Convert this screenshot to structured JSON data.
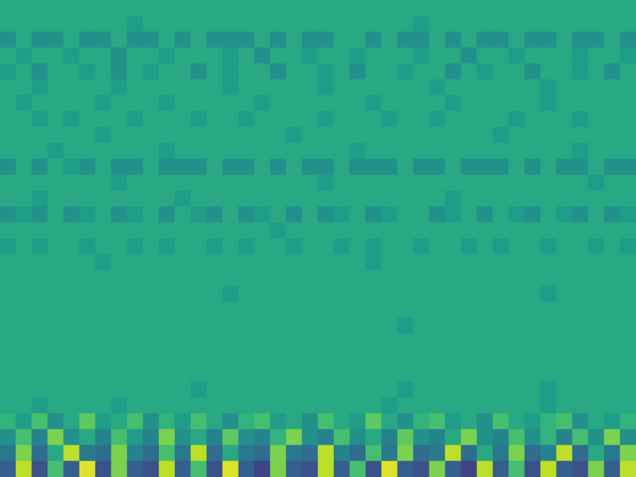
{
  "chart_data": {
    "type": "heatmap",
    "tick_labels": false,
    "color_range": [
      0,
      10
    ],
    "cells": [
      [
        6,
        6,
        6,
        6,
        6,
        6,
        6,
        6,
        6,
        6,
        6,
        6,
        6,
        6,
        6,
        6,
        6,
        6,
        6,
        6,
        6,
        6,
        6,
        6,
        6,
        6,
        6,
        6,
        6,
        6,
        6,
        6,
        6,
        6,
        6,
        6,
        6,
        6,
        6,
        6
      ],
      [
        6,
        6,
        6,
        6,
        6,
        6,
        6,
        6,
        5.5,
        6,
        6,
        6,
        6,
        6,
        6,
        6,
        6,
        6,
        6,
        6,
        6,
        6,
        6,
        6,
        6,
        6,
        5.5,
        6,
        6,
        6,
        6,
        6,
        6,
        6,
        6,
        6,
        6,
        6,
        6,
        6
      ],
      [
        5,
        6,
        5,
        5,
        6,
        5,
        5,
        6,
        5,
        5,
        6,
        5,
        6,
        5,
        5,
        5,
        6,
        5,
        6,
        5,
        5,
        6,
        6,
        5,
        6,
        5,
        5,
        6,
        5,
        6,
        5,
        5,
        6,
        5,
        5,
        6,
        5,
        5,
        6,
        5
      ],
      [
        6,
        5.5,
        6,
        6,
        5.5,
        6,
        6,
        5,
        6,
        6,
        5.5,
        6,
        6,
        6,
        5.5,
        6,
        5,
        6,
        6,
        5.5,
        6,
        6,
        5.5,
        6,
        6,
        6,
        5.5,
        6,
        6,
        5,
        6,
        6,
        5.5,
        6,
        6,
        6,
        5.5,
        6,
        6,
        5.5
      ],
      [
        5.5,
        6,
        5,
        6,
        6,
        5.5,
        6,
        5,
        6,
        5.5,
        6,
        6,
        5,
        6,
        5.5,
        6,
        6,
        5,
        6,
        6,
        5.5,
        6,
        5,
        6,
        6,
        5.5,
        6,
        6,
        5,
        6,
        5.5,
        6,
        6,
        5,
        6,
        6,
        5.5,
        6,
        5,
        6
      ],
      [
        6,
        6,
        5.5,
        6,
        6,
        6,
        6,
        5.5,
        6,
        6,
        6,
        6,
        6,
        6,
        5.5,
        6,
        6,
        6,
        6,
        6,
        5.5,
        6,
        6,
        6,
        6,
        6,
        6,
        5.5,
        6,
        6,
        6,
        6,
        6,
        6,
        5.5,
        6,
        6,
        6,
        6,
        6
      ],
      [
        6,
        5.5,
        6,
        6,
        6,
        6,
        5.5,
        6,
        6,
        6,
        5.5,
        6,
        6,
        6,
        6,
        6,
        5.5,
        6,
        6,
        6,
        6,
        6,
        6,
        5.5,
        6,
        6,
        6,
        6,
        5.5,
        6,
        6,
        6,
        6,
        6,
        5.5,
        6,
        6,
        6,
        6,
        6
      ],
      [
        6,
        6,
        5.5,
        6,
        5.5,
        6,
        6,
        6,
        5.5,
        6,
        6,
        6,
        5.5,
        6,
        6,
        5.5,
        6,
        6,
        6,
        6,
        5.5,
        6,
        6,
        6,
        5.5,
        6,
        6,
        5.5,
        6,
        6,
        6,
        6,
        5.5,
        6,
        6,
        6,
        5.5,
        6,
        6,
        6
      ],
      [
        6,
        6,
        6,
        6,
        6,
        6,
        5.5,
        6,
        6,
        6,
        6,
        6,
        6,
        6,
        6,
        6,
        6,
        6,
        5.5,
        6,
        6,
        6,
        6,
        6,
        6,
        6,
        6,
        6,
        6,
        6,
        6,
        5.5,
        6,
        6,
        6,
        6,
        6,
        6,
        6,
        6
      ],
      [
        6,
        6,
        6,
        5.5,
        6,
        6,
        6,
        6,
        6,
        6,
        5.5,
        6,
        6,
        6,
        6,
        6,
        6,
        6,
        6,
        6,
        6,
        6,
        5.5,
        6,
        6,
        6,
        6,
        6,
        6,
        6,
        6,
        6,
        6,
        6,
        6,
        6,
        5.5,
        6,
        6,
        6
      ],
      [
        5,
        6,
        5,
        6,
        5.5,
        5,
        6,
        5,
        5,
        6,
        5,
        5,
        5,
        6,
        5,
        5,
        6,
        5,
        6,
        5,
        5,
        6,
        5,
        5,
        5,
        6,
        5,
        5,
        6,
        5,
        5,
        5,
        6,
        5,
        6,
        5,
        5,
        6,
        5,
        5
      ],
      [
        6,
        6,
        6,
        6,
        6,
        6,
        6,
        5.5,
        6,
        6,
        6,
        6,
        6,
        6,
        6,
        6,
        6,
        6,
        6,
        6,
        5.5,
        6,
        6,
        6,
        6,
        6,
        6,
        6,
        6,
        6,
        6,
        6,
        6,
        6,
        6,
        6,
        6,
        5.5,
        6,
        6
      ],
      [
        6,
        6,
        5.5,
        6,
        6,
        6,
        6,
        6,
        6,
        6,
        6,
        5.5,
        6,
        6,
        6,
        6,
        6,
        6,
        6,
        6,
        6,
        6,
        6,
        6,
        6,
        6,
        6,
        6,
        5.5,
        6,
        6,
        6,
        6,
        6,
        6,
        6,
        6,
        6,
        6,
        6
      ],
      [
        5,
        5.5,
        5,
        6,
        5,
        5.5,
        6,
        5,
        5.5,
        6,
        5,
        6,
        5.5,
        5,
        6,
        5,
        5.5,
        6,
        5,
        6,
        5,
        5.5,
        6,
        5,
        5.5,
        6,
        6,
        5,
        5.5,
        6,
        5,
        6,
        5.5,
        5,
        6,
        5.5,
        5,
        6,
        5,
        5.5
      ],
      [
        6,
        6,
        6,
        6,
        6,
        6,
        6,
        6,
        6,
        6,
        6,
        6,
        6,
        6,
        6,
        6,
        6,
        5.5,
        6,
        6,
        6,
        6,
        6,
        6,
        6,
        6,
        6,
        6,
        6,
        6,
        6,
        6,
        6,
        6,
        6,
        6,
        6,
        6,
        6,
        6
      ],
      [
        5.5,
        6,
        5.5,
        6,
        6,
        5.5,
        6,
        6,
        5.5,
        6,
        5.5,
        6,
        6,
        5.5,
        6,
        5.5,
        6,
        6,
        5.5,
        6,
        6,
        5.5,
        6,
        5.5,
        6,
        6,
        5.5,
        6,
        6,
        5.5,
        6,
        5.5,
        6,
        6,
        5.5,
        6,
        6,
        5.5,
        6,
        5.5
      ],
      [
        6,
        6,
        6,
        6,
        6,
        6,
        5.5,
        6,
        6,
        6,
        6,
        6,
        6,
        6,
        6,
        6,
        6,
        6,
        6,
        6,
        6,
        6,
        6,
        5.5,
        6,
        6,
        6,
        6,
        6,
        6,
        6,
        6,
        6,
        6,
        6,
        6,
        6,
        6,
        6,
        6
      ],
      [
        6,
        6,
        6,
        6,
        6,
        6,
        6,
        6,
        6,
        6,
        6,
        6,
        6,
        6,
        6,
        6,
        6,
        6,
        6,
        6,
        6,
        6,
        6,
        6,
        6,
        6,
        6,
        6,
        6,
        6,
        6,
        6,
        6,
        6,
        6,
        6,
        6,
        6,
        6,
        6
      ],
      [
        6,
        6,
        6,
        6,
        6,
        6,
        6,
        6,
        6,
        6,
        6,
        6,
        6,
        6,
        5.5,
        6,
        6,
        6,
        6,
        6,
        6,
        6,
        6,
        6,
        6,
        6,
        6,
        6,
        6,
        6,
        6,
        6,
        6,
        6,
        5.5,
        6,
        6,
        6,
        6,
        6
      ],
      [
        6,
        6,
        6,
        6,
        6,
        6,
        6,
        6,
        6,
        6,
        6,
        6,
        6,
        6,
        6,
        6,
        6,
        6,
        6,
        6,
        6,
        6,
        6,
        6,
        6,
        6,
        6,
        6,
        6,
        6,
        6,
        6,
        6,
        6,
        6,
        6,
        6,
        6,
        6,
        6
      ],
      [
        6,
        6,
        6,
        6,
        6,
        6,
        6,
        6,
        6,
        6,
        6,
        6,
        6,
        6,
        6,
        6,
        6,
        6,
        6,
        6,
        6,
        6,
        6,
        6,
        6,
        5.5,
        6,
        6,
        6,
        6,
        6,
        6,
        6,
        6,
        6,
        6,
        6,
        6,
        6,
        6
      ],
      [
        6,
        6,
        6,
        6,
        6,
        6,
        6,
        6,
        6,
        6,
        6,
        6,
        6,
        6,
        6,
        6,
        6,
        6,
        6,
        6,
        6,
        6,
        6,
        6,
        6,
        6,
        6,
        6,
        6,
        6,
        6,
        6,
        6,
        6,
        6,
        6,
        6,
        6,
        6,
        6
      ],
      [
        6,
        6,
        6,
        6,
        6,
        6,
        6,
        6,
        6,
        6,
        6,
        6,
        6,
        6,
        6,
        6,
        6,
        6,
        6,
        6,
        6,
        6,
        6,
        6,
        6,
        6,
        6,
        6,
        6,
        6,
        6,
        6,
        6,
        6,
        6,
        6,
        6,
        6,
        6,
        6
      ],
      [
        6,
        6,
        6,
        6,
        6,
        6,
        6,
        6,
        6,
        6,
        6,
        6,
        6,
        6,
        6,
        6,
        6,
        6,
        6,
        6,
        6,
        6,
        6,
        6,
        6,
        6,
        6,
        6,
        6,
        6,
        6,
        6,
        6,
        6,
        6,
        6,
        6,
        6,
        6,
        6
      ],
      [
        6,
        6,
        6,
        6,
        6,
        6,
        6,
        6,
        6,
        6,
        6,
        6,
        5.5,
        6,
        6,
        6,
        6,
        6,
        6,
        6,
        6,
        6,
        6,
        6,
        6,
        5.5,
        6,
        6,
        6,
        6,
        6,
        6,
        6,
        6,
        5.5,
        6,
        6,
        6,
        6,
        6
      ],
      [
        6,
        6,
        5.5,
        6,
        6,
        6,
        6,
        5.5,
        6,
        6,
        6,
        6,
        6,
        6,
        6,
        6,
        6,
        6,
        6,
        6,
        6,
        6,
        6,
        6,
        5.5,
        6,
        6,
        6,
        6,
        6,
        6,
        6,
        6,
        6,
        5.5,
        6,
        6,
        6,
        6,
        6
      ],
      [
        6.5,
        5.5,
        7,
        5,
        6,
        7.5,
        5.5,
        6,
        7,
        5,
        6.5,
        5.5,
        7,
        6,
        5,
        6.5,
        7,
        5.5,
        6,
        5,
        7,
        6,
        5.5,
        7.5,
        6,
        5,
        6.5,
        7,
        5.5,
        6,
        5,
        7,
        6,
        5.5,
        6.5,
        7,
        5,
        6,
        5.5,
        6.5
      ],
      [
        5,
        7,
        4.5,
        8,
        5,
        6,
        4.5,
        7,
        5.5,
        4.5,
        8,
        5,
        6,
        4.5,
        7.5,
        5,
        4.5,
        6.5,
        8,
        5,
        4.5,
        7,
        5,
        6,
        4.5,
        7.5,
        5,
        4.5,
        6,
        8,
        5,
        4.5,
        7,
        5,
        6.5,
        4.5,
        7,
        5,
        8,
        5
      ],
      [
        4,
        8,
        3.5,
        6,
        9,
        4,
        3.5,
        8,
        4.5,
        3.5,
        7,
        4,
        9,
        3.5,
        6,
        4,
        3.5,
        8,
        4,
        3.5,
        9,
        4.5,
        3.5,
        7,
        4,
        8,
        3.5,
        4,
        9,
        3.5,
        6,
        4,
        8,
        3.5,
        4.5,
        9,
        3.5,
        6,
        4,
        8
      ],
      [
        3,
        9,
        2.5,
        7,
        3,
        9.5,
        2.5,
        8,
        3,
        2.5,
        9,
        3,
        7,
        2.5,
        9.5,
        3,
        2,
        8,
        3,
        2.5,
        9,
        3,
        7,
        2.5,
        9.5,
        3,
        2.5,
        8,
        3,
        2,
        9,
        3,
        7,
        2.5,
        9,
        3,
        2.5,
        8,
        3,
        9
      ]
    ]
  }
}
